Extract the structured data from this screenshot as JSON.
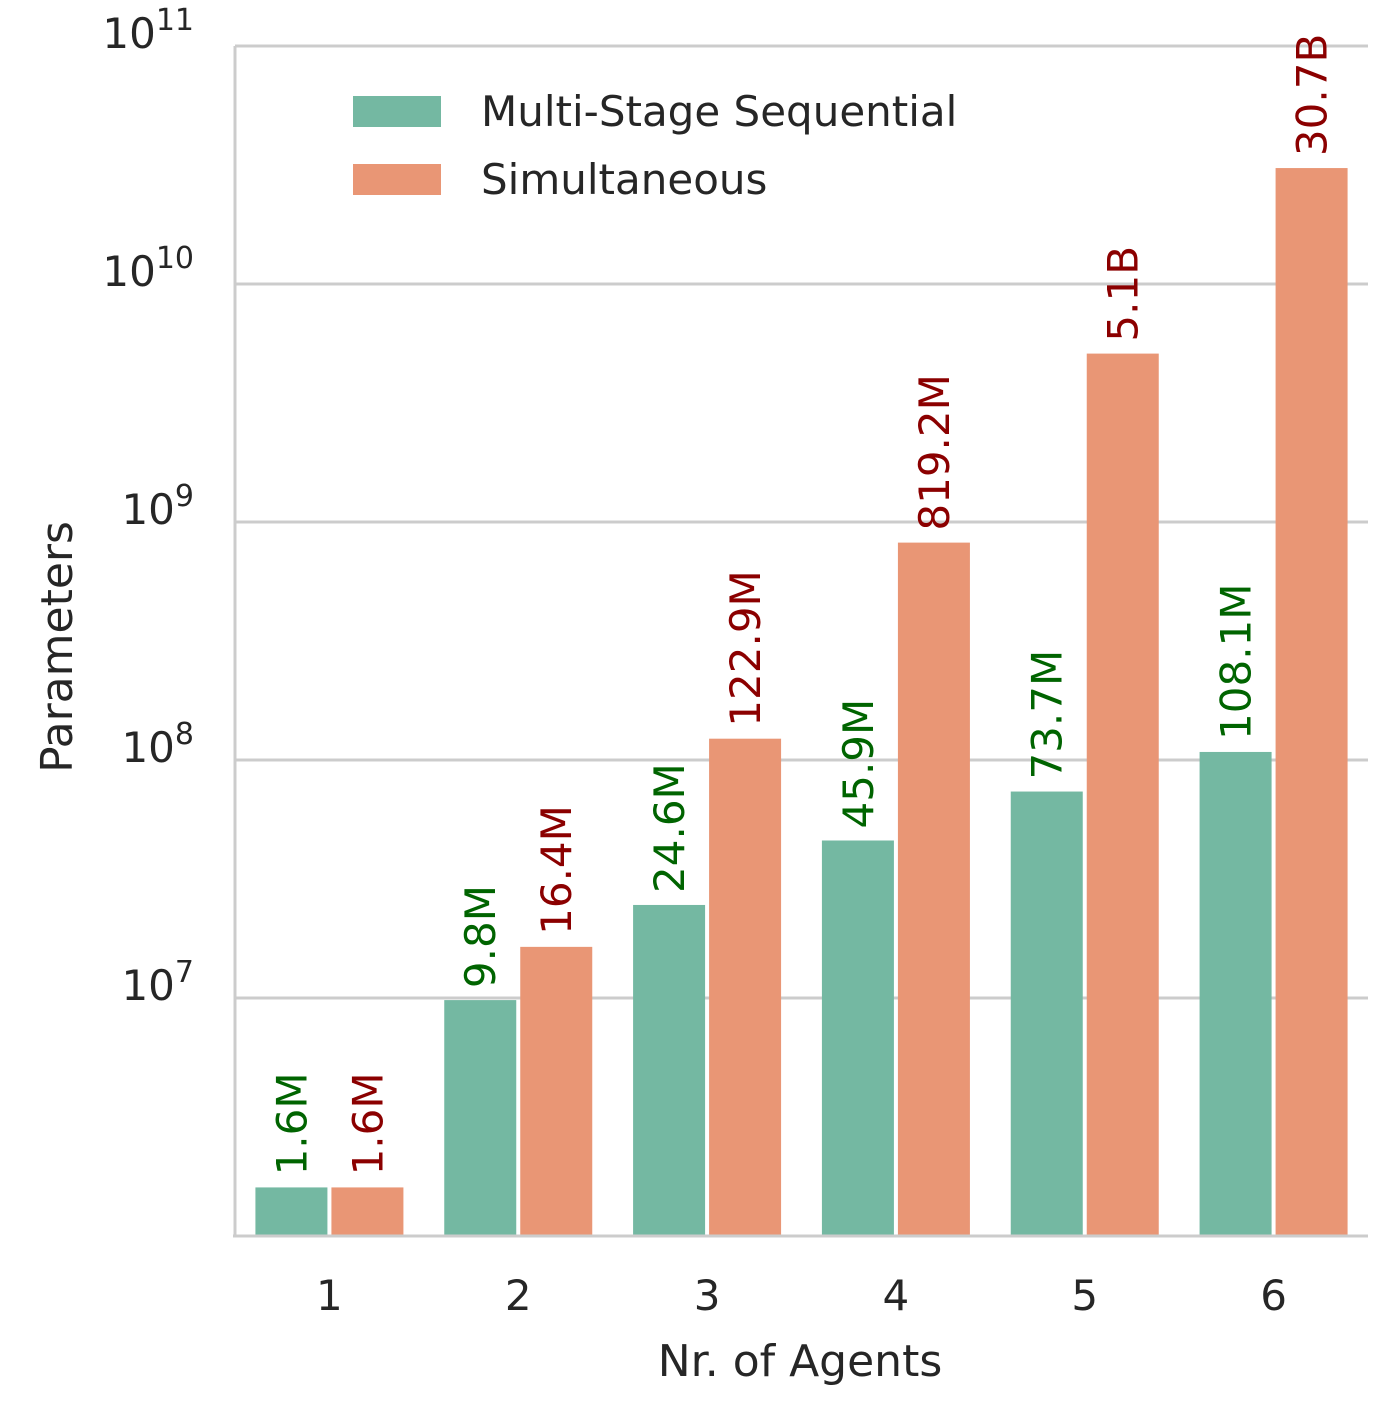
{
  "chart_data": {
    "type": "bar",
    "xlabel": "Nr. of Agents",
    "ylabel": "Parameters",
    "yscale": "log",
    "ylim": [
      1000000,
      100000000000
    ],
    "grid": "horizontal",
    "legend_position": "top-left",
    "categories": [
      "1",
      "2",
      "3",
      "4",
      "5",
      "6"
    ],
    "yticks": [
      {
        "value": 10000000,
        "base": "10",
        "exp": "7"
      },
      {
        "value": 100000000,
        "base": "10",
        "exp": "8"
      },
      {
        "value": 1000000000,
        "base": "10",
        "exp": "9"
      },
      {
        "value": 10000000000,
        "base": "10",
        "exp": "10"
      },
      {
        "value": 100000000000,
        "base": "10",
        "exp": "11"
      }
    ],
    "series": [
      {
        "name": "Multi-Stage Sequential",
        "color": "#74b8a2",
        "label_color": "#006400",
        "values": [
          1600000,
          9800000,
          24600000,
          45900000,
          73700000,
          108100000
        ],
        "labels": [
          "1.6M",
          "9.8M",
          "24.6M",
          "45.9M",
          "73.7M",
          "108.1M"
        ]
      },
      {
        "name": "Simultaneous",
        "color": "#e99675",
        "label_color": "#8b0000",
        "values": [
          1600000,
          16400000,
          122900000,
          819200000,
          5100000000,
          30700000000
        ],
        "labels": [
          "1.6M",
          "16.4M",
          "122.9M",
          "819.2M",
          "5.1B",
          "30.7B"
        ]
      }
    ]
  }
}
